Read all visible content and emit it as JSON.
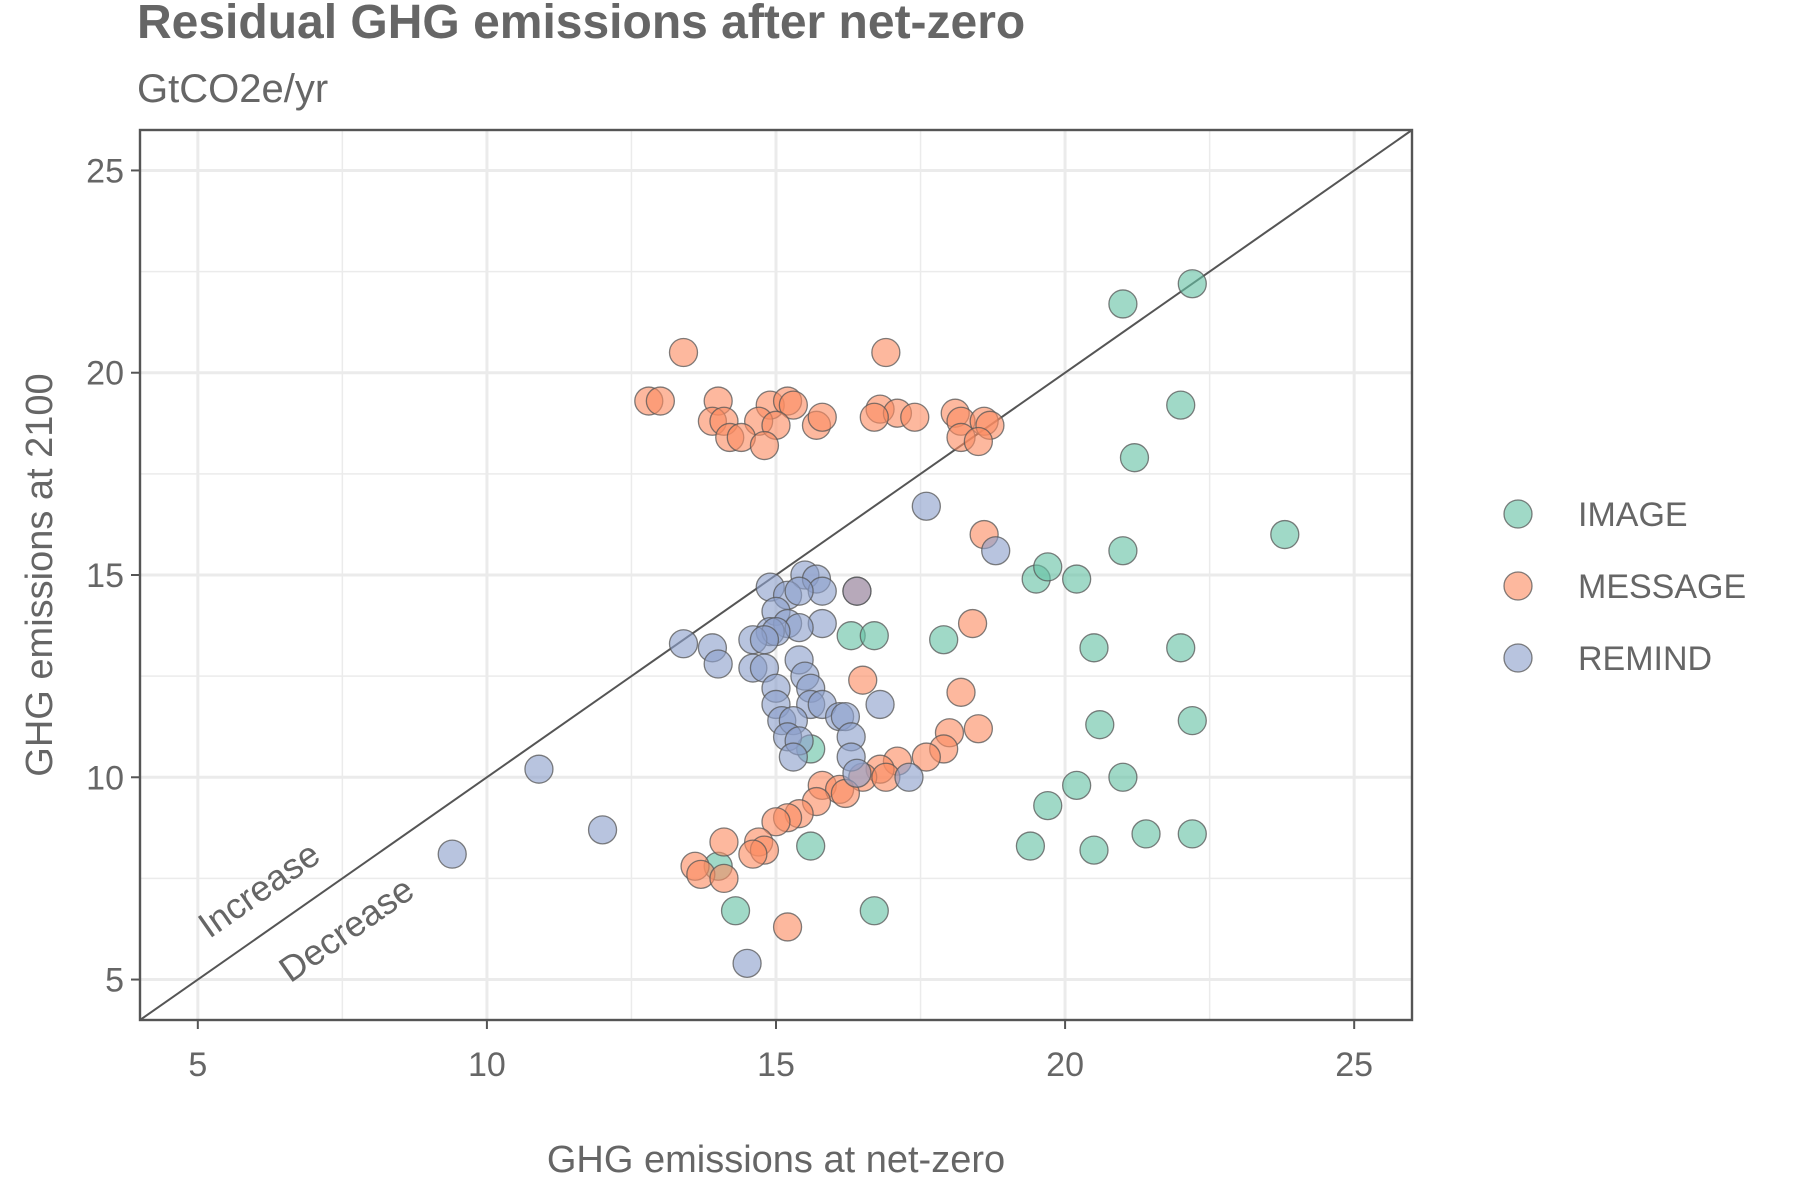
{
  "chart_data": {
    "type": "scatter",
    "title": "Residual GHG emissions after net-zero",
    "subtitle": "GtCO2e/yr",
    "xlabel": "GHG emissions at net-zero",
    "ylabel": "GHG emissions at 2100",
    "xlim": [
      4,
      26
    ],
    "ylim": [
      4,
      26
    ],
    "xticks": [
      5,
      10,
      15,
      20,
      25
    ],
    "yticks": [
      5,
      10,
      15,
      20,
      25
    ],
    "grid": true,
    "legend_position": "right",
    "reference_line": "y = x",
    "annotations": [
      "Increase",
      "Decrease"
    ],
    "colors": {
      "IMAGE": "#66c2a5",
      "MESSAGE": "#fc8d62",
      "REMIND": "#8da0cb",
      "outline": "#555555",
      "text": "#666666",
      "grid": "#ebebeb",
      "frame": "#555555"
    },
    "series": [
      {
        "name": "IMAGE",
        "points": [
          [
            22.2,
            22.2
          ],
          [
            21.0,
            21.7
          ],
          [
            22.0,
            19.2
          ],
          [
            21.2,
            17.9
          ],
          [
            23.8,
            16.0
          ],
          [
            21.0,
            15.6
          ],
          [
            19.5,
            14.9
          ],
          [
            19.7,
            15.2
          ],
          [
            20.2,
            14.9
          ],
          [
            20.5,
            13.2
          ],
          [
            22.0,
            13.2
          ],
          [
            16.3,
            13.5
          ],
          [
            17.9,
            13.4
          ],
          [
            16.7,
            13.5
          ],
          [
            20.6,
            11.3
          ],
          [
            22.2,
            11.4
          ],
          [
            15.6,
            10.7
          ],
          [
            21.0,
            10.0
          ],
          [
            20.2,
            9.8
          ],
          [
            19.7,
            9.3
          ],
          [
            19.4,
            8.3
          ],
          [
            20.5,
            8.2
          ],
          [
            21.4,
            8.6
          ],
          [
            22.2,
            8.6
          ],
          [
            15.6,
            8.3
          ],
          [
            14.0,
            7.8
          ],
          [
            14.3,
            6.7
          ],
          [
            16.7,
            6.7
          ]
        ]
      },
      {
        "name": "MESSAGE",
        "points": [
          [
            13.4,
            20.5
          ],
          [
            16.9,
            20.5
          ],
          [
            12.8,
            19.3
          ],
          [
            13.0,
            19.3
          ],
          [
            14.0,
            19.3
          ],
          [
            14.9,
            19.2
          ],
          [
            15.2,
            19.3
          ],
          [
            15.3,
            19.2
          ],
          [
            13.9,
            18.8
          ],
          [
            14.1,
            18.8
          ],
          [
            14.7,
            18.8
          ],
          [
            15.0,
            18.7
          ],
          [
            15.7,
            18.7
          ],
          [
            15.8,
            18.9
          ],
          [
            16.8,
            19.1
          ],
          [
            17.1,
            19.0
          ],
          [
            16.7,
            18.9
          ],
          [
            17.4,
            18.9
          ],
          [
            18.1,
            19.0
          ],
          [
            18.2,
            18.8
          ],
          [
            18.6,
            18.8
          ],
          [
            18.7,
            18.7
          ],
          [
            18.2,
            18.4
          ],
          [
            18.5,
            18.3
          ],
          [
            14.2,
            18.4
          ],
          [
            14.4,
            18.4
          ],
          [
            14.8,
            18.2
          ],
          [
            18.6,
            16.0
          ],
          [
            16.4,
            14.6
          ],
          [
            18.4,
            13.8
          ],
          [
            16.5,
            12.4
          ],
          [
            18.2,
            12.1
          ],
          [
            18.5,
            11.2
          ],
          [
            18.0,
            11.1
          ],
          [
            17.9,
            10.7
          ],
          [
            17.6,
            10.5
          ],
          [
            17.1,
            10.4
          ],
          [
            16.8,
            10.2
          ],
          [
            16.5,
            10.0
          ],
          [
            16.9,
            10.0
          ],
          [
            15.8,
            9.8
          ],
          [
            16.1,
            9.7
          ],
          [
            16.2,
            9.6
          ],
          [
            15.7,
            9.4
          ],
          [
            15.4,
            9.1
          ],
          [
            15.2,
            9.0
          ],
          [
            15.0,
            8.9
          ],
          [
            14.1,
            8.4
          ],
          [
            14.7,
            8.4
          ],
          [
            14.8,
            8.2
          ],
          [
            14.6,
            8.1
          ],
          [
            13.6,
            7.8
          ],
          [
            13.7,
            7.6
          ],
          [
            14.1,
            7.5
          ],
          [
            15.2,
            6.3
          ]
        ]
      },
      {
        "name": "REMIND",
        "points": [
          [
            17.6,
            16.7
          ],
          [
            18.8,
            15.6
          ],
          [
            15.5,
            15.0
          ],
          [
            15.7,
            14.9
          ],
          [
            15.8,
            14.6
          ],
          [
            14.9,
            14.7
          ],
          [
            15.2,
            14.5
          ],
          [
            15.4,
            14.6
          ],
          [
            16.4,
            14.6
          ],
          [
            15.0,
            14.1
          ],
          [
            15.2,
            13.8
          ],
          [
            15.8,
            13.8
          ],
          [
            15.4,
            13.7
          ],
          [
            14.9,
            13.6
          ],
          [
            15.0,
            13.6
          ],
          [
            14.6,
            13.4
          ],
          [
            14.8,
            13.4
          ],
          [
            13.4,
            13.3
          ],
          [
            13.9,
            13.2
          ],
          [
            14.0,
            12.8
          ],
          [
            14.6,
            12.7
          ],
          [
            14.8,
            12.7
          ],
          [
            15.4,
            12.9
          ],
          [
            15.5,
            12.5
          ],
          [
            15.6,
            12.2
          ],
          [
            15.0,
            12.2
          ],
          [
            15.6,
            11.8
          ],
          [
            15.8,
            11.8
          ],
          [
            15.0,
            11.8
          ],
          [
            16.8,
            11.8
          ],
          [
            15.1,
            11.4
          ],
          [
            15.3,
            11.4
          ],
          [
            16.1,
            11.5
          ],
          [
            16.2,
            11.5
          ],
          [
            15.2,
            11.0
          ],
          [
            15.4,
            10.9
          ],
          [
            16.3,
            11.0
          ],
          [
            15.3,
            10.5
          ],
          [
            16.3,
            10.5
          ],
          [
            16.4,
            10.1
          ],
          [
            17.3,
            10.0
          ],
          [
            10.9,
            10.2
          ],
          [
            12.0,
            8.7
          ],
          [
            9.4,
            8.1
          ],
          [
            14.5,
            5.4
          ]
        ]
      }
    ]
  }
}
